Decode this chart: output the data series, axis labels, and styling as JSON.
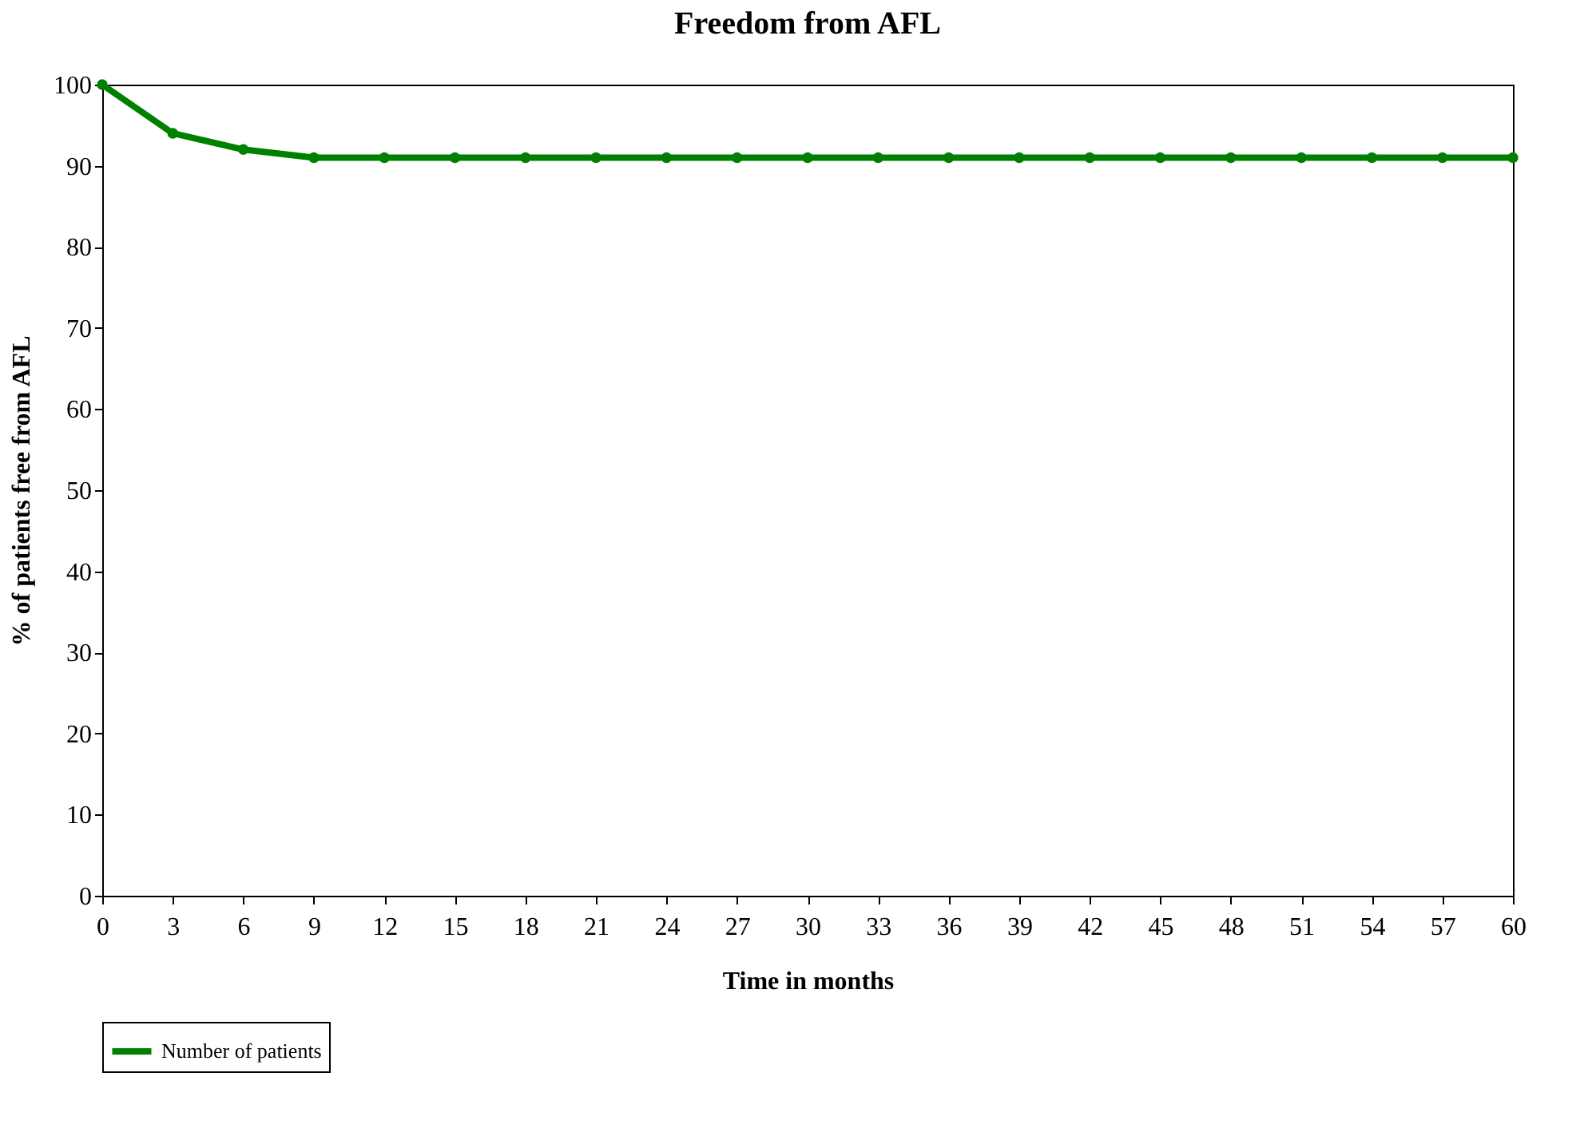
{
  "chart_data": {
    "type": "line",
    "title": "Freedom from AFL",
    "xlabel": "Time in months",
    "ylabel": "% of patients free from AFL",
    "x": [
      0,
      3,
      6,
      9,
      12,
      15,
      18,
      21,
      24,
      27,
      30,
      33,
      36,
      39,
      42,
      45,
      48,
      51,
      54,
      57,
      60
    ],
    "series": [
      {
        "name": "Number of patients",
        "color": "#008000",
        "values": [
          100,
          94,
          92,
          91,
          91,
          91,
          91,
          91,
          91,
          91,
          91,
          91,
          91,
          91,
          91,
          91,
          91,
          91,
          91,
          91,
          91
        ]
      }
    ],
    "xlim": [
      0,
      60
    ],
    "xticks": [
      0,
      3,
      6,
      9,
      12,
      15,
      18,
      21,
      24,
      27,
      30,
      33,
      36,
      39,
      42,
      45,
      48,
      51,
      54,
      57,
      60
    ],
    "ylim": [
      0,
      100
    ],
    "yticks": [
      0,
      10,
      20,
      30,
      40,
      50,
      60,
      70,
      80,
      90,
      100
    ],
    "grid": false,
    "legend": "bottom",
    "marker": "circle",
    "line_style": "solid"
  }
}
